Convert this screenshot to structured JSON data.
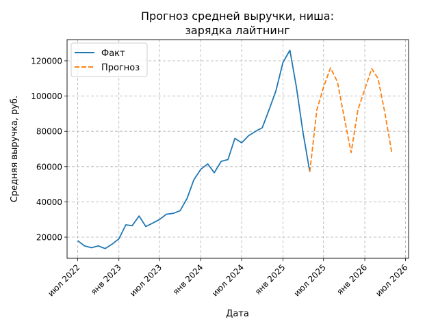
{
  "chart_data": {
    "type": "line",
    "title_line1": "Прогноз средней выручки, ниша:",
    "title_line2": "зарядка лайтнинг",
    "xlabel": "Дата",
    "ylabel": "Средняя выручка, руб.",
    "x_ticks": [
      "2022-07-01",
      "2023-01-01",
      "2023-07-01",
      "2024-01-01",
      "2024-07-01",
      "2025-01-01",
      "2025-07-01",
      "2026-01-01",
      "2026-07-01"
    ],
    "x_tick_labels": [
      "июл 2022",
      "янв 2023",
      "июл 2023",
      "янв 2024",
      "июл 2024",
      "янв 2025",
      "июл 2025",
      "янв 2026",
      "июл 2026"
    ],
    "y_ticks": [
      20000,
      40000,
      60000,
      80000,
      100000,
      120000
    ],
    "y_tick_labels": [
      "20000",
      "40000",
      "60000",
      "80000",
      "100000",
      "120000"
    ],
    "xlim": [
      "2022-05-15",
      "2026-07-15"
    ],
    "ylim": [
      8000,
      132000
    ],
    "grid": true,
    "legend_position": "top-left",
    "series": [
      {
        "name": "Факт",
        "color": "#1f77b4",
        "style": "solid",
        "x": [
          "2022-07-01",
          "2022-08-01",
          "2022-09-01",
          "2022-10-01",
          "2022-11-01",
          "2022-12-01",
          "2023-01-01",
          "2023-02-01",
          "2023-03-01",
          "2023-04-01",
          "2023-05-01",
          "2023-06-01",
          "2023-07-01",
          "2023-08-01",
          "2023-09-01",
          "2023-10-01",
          "2023-11-01",
          "2023-12-01",
          "2024-01-01",
          "2024-02-01",
          "2024-03-01",
          "2024-04-01",
          "2024-05-01",
          "2024-06-01",
          "2024-07-01",
          "2024-08-01",
          "2024-09-01",
          "2024-10-01",
          "2024-11-01",
          "2024-12-01",
          "2025-01-01",
          "2025-02-01",
          "2025-03-01",
          "2025-04-01",
          "2025-05-01"
        ],
        "y": [
          18000,
          15000,
          14000,
          15000,
          13500,
          16000,
          19000,
          27000,
          26500,
          32000,
          26000,
          28000,
          30000,
          33000,
          33500,
          35000,
          42000,
          52500,
          58500,
          61500,
          56500,
          63000,
          64000,
          76000,
          73500,
          77500,
          80000,
          82000,
          92500,
          103000,
          119000,
          126000,
          106000,
          79000,
          57000
        ]
      },
      {
        "name": "Прогноз",
        "color": "#ff7f0e",
        "style": "dashed",
        "x": [
          "2025-05-01",
          "2025-06-01",
          "2025-07-01",
          "2025-08-01",
          "2025-09-01",
          "2025-10-01",
          "2025-11-01",
          "2025-12-01",
          "2026-01-01",
          "2026-02-01",
          "2026-03-01",
          "2026-04-01",
          "2026-05-01"
        ],
        "y": [
          57000,
          92000,
          105000,
          116000,
          108000,
          88000,
          68000,
          92000,
          104000,
          115500,
          110000,
          90000,
          68000
        ]
      }
    ]
  }
}
